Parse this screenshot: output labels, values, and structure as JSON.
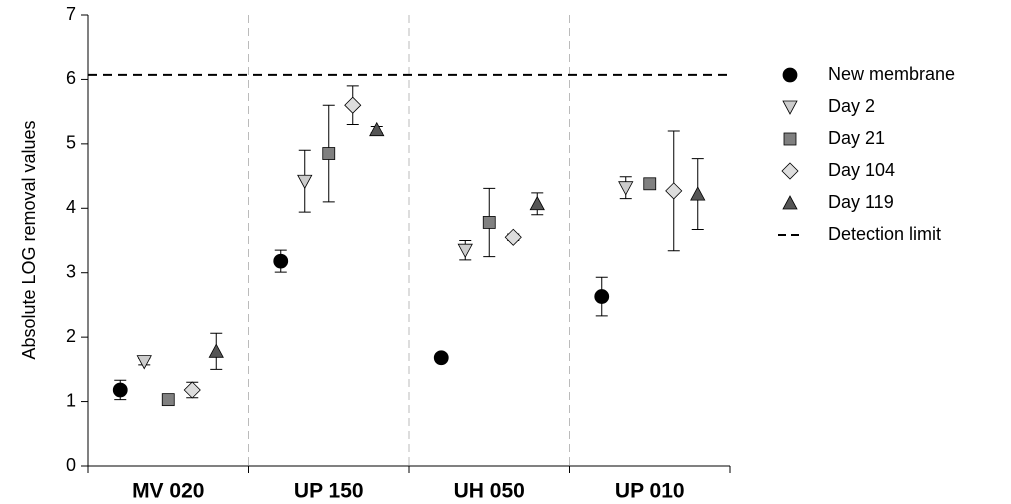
{
  "chart_data": {
    "type": "scatter",
    "y_label": "Absolute LOG removal values",
    "categories": [
      "MV 020",
      "UP 150",
      "UH 050",
      "UP 010"
    ],
    "ylim": [
      0,
      7
    ],
    "yticks": [
      0,
      1,
      2,
      3,
      4,
      5,
      6,
      7
    ],
    "series": [
      {
        "name": "New membrane",
        "color": "#000000",
        "marker": "circle",
        "values": [
          1.18,
          3.18,
          1.68,
          2.63
        ],
        "errors": [
          0.15,
          0.17,
          0.06,
          0.3
        ]
      },
      {
        "name": "Day 2",
        "color": "#cccccc",
        "marker": "triangle-down",
        "values": [
          1.62,
          4.42,
          3.35,
          4.32
        ],
        "errors": [
          0.05,
          0.48,
          0.15,
          0.17
        ]
      },
      {
        "name": "Day 21",
        "color": "#808080",
        "marker": "square",
        "values": [
          1.03,
          4.85,
          3.78,
          4.38
        ],
        "errors": [
          0.03,
          0.75,
          0.53,
          0.05
        ]
      },
      {
        "name": "Day 104",
        "color": "#dddddd",
        "marker": "diamond",
        "values": [
          1.18,
          5.6,
          3.55,
          4.27
        ],
        "errors": [
          0.12,
          0.3,
          0.05,
          0.93
        ]
      },
      {
        "name": "Day 119",
        "color": "#555555",
        "marker": "triangle-up",
        "values": [
          1.78,
          5.22,
          4.07,
          4.22
        ],
        "errors": [
          0.28,
          0.05,
          0.17,
          0.55
        ]
      }
    ],
    "detection_limit": {
      "name": "Detection limit",
      "value": 6.07
    }
  }
}
